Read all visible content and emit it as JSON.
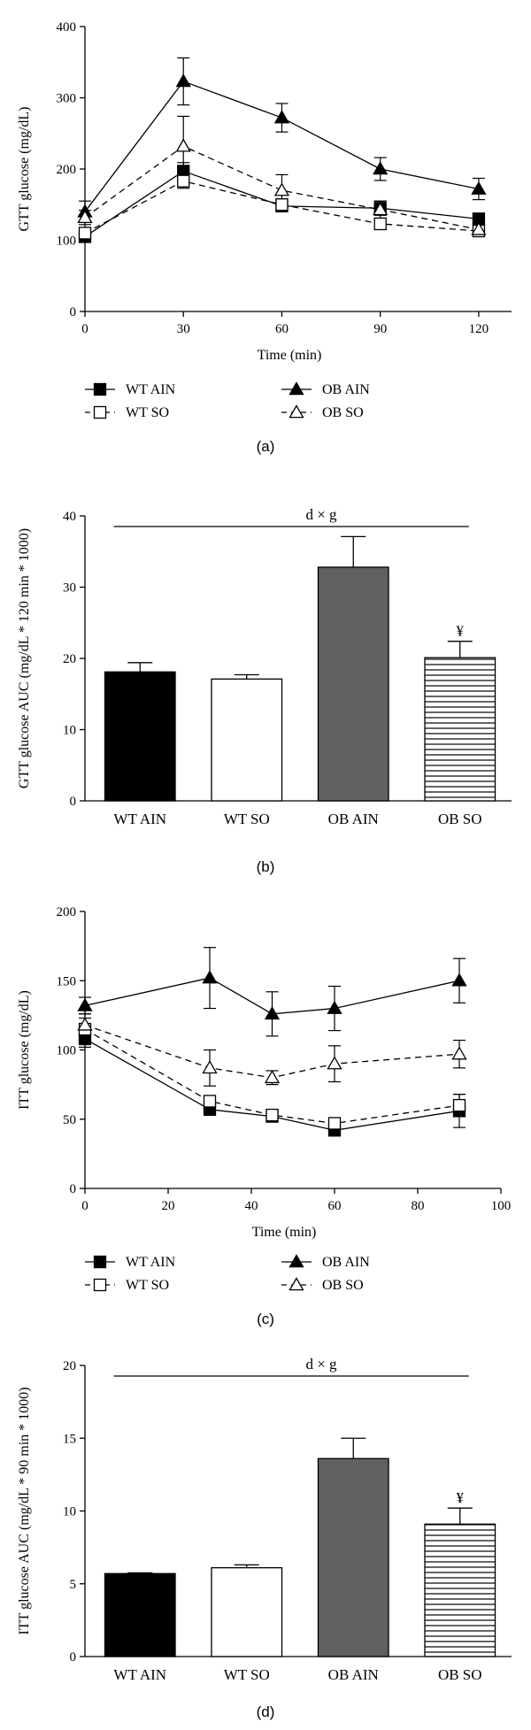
{
  "colors": {
    "axis": "#000000",
    "ob_ain_bar": "#606060",
    "wt_ain_bar": "#000000",
    "wt_so_bar": "#ffffff"
  },
  "chart_data": [
    {
      "type": "line",
      "panel": "(a)",
      "xlabel": "Time (min)",
      "ylabel": "GTT glucose (mg/dL)",
      "x": [
        0,
        30,
        60,
        90,
        120
      ],
      "xlim": [
        0,
        130
      ],
      "ylim": [
        0,
        400
      ],
      "xticks": [
        0,
        30,
        60,
        90,
        120
      ],
      "yticks": [
        0,
        100,
        200,
        300,
        400
      ],
      "series": [
        {
          "name": "WT AIN",
          "marker": "filled-square",
          "dashed": false,
          "values": [
            105,
            197,
            148,
            145,
            130
          ],
          "errors": [
            5,
            12,
            8,
            10,
            8
          ]
        },
        {
          "name": "OB AIN",
          "marker": "filled-triangle",
          "dashed": false,
          "values": [
            140,
            323,
            272,
            200,
            172
          ],
          "errors": [
            15,
            33,
            20,
            16,
            15
          ]
        },
        {
          "name": "WT SO",
          "marker": "open-square",
          "dashed": true,
          "values": [
            110,
            183,
            150,
            123,
            113
          ],
          "errors": [
            6,
            10,
            8,
            8,
            6
          ]
        },
        {
          "name": "OB SO",
          "marker": "open-triangle",
          "dashed": true,
          "values": [
            132,
            232,
            170,
            143,
            115
          ],
          "errors": [
            10,
            42,
            22,
            12,
            8
          ]
        }
      ],
      "legend": [
        "WT AIN",
        "OB AIN",
        "WT SO",
        "OB SO"
      ]
    },
    {
      "type": "bar",
      "panel": "(b)",
      "ylabel": "GTT glucose AUC (mg/dL * 120 min * 1000)",
      "categories": [
        "WT AIN",
        "WT SO",
        "OB AIN",
        "OB SO"
      ],
      "values": [
        18.1,
        17.1,
        32.8,
        20.1
      ],
      "errors": [
        1.3,
        0.6,
        4.3,
        2.3
      ],
      "fills": [
        "solid-black",
        "white",
        "dark-gray",
        "horizontal-stripes"
      ],
      "ylim": [
        0,
        40
      ],
      "yticks": [
        0,
        10,
        20,
        30,
        40
      ],
      "annotation": "d × g",
      "marker_label": "¥",
      "marker_on": "OB SO"
    },
    {
      "type": "line",
      "panel": "(c)",
      "xlabel": "Time (min)",
      "ylabel": "ITT glucose (mg/dL)",
      "x": [
        0,
        30,
        45,
        60,
        90
      ],
      "xlim": [
        0,
        100
      ],
      "ylim": [
        0,
        200
      ],
      "xticks": [
        0,
        20,
        40,
        60,
        80,
        100
      ],
      "yticks": [
        0,
        50,
        100,
        150,
        200
      ],
      "series": [
        {
          "name": "WT AIN",
          "marker": "filled-square",
          "dashed": false,
          "values": [
            108,
            57,
            52,
            42,
            56
          ],
          "errors": [
            6,
            3,
            4,
            4,
            12
          ]
        },
        {
          "name": "OB AIN",
          "marker": "filled-triangle",
          "dashed": false,
          "values": [
            132,
            152,
            126,
            130,
            150
          ],
          "errors": [
            6,
            22,
            16,
            16,
            16
          ]
        },
        {
          "name": "WT SO",
          "marker": "open-square",
          "dashed": true,
          "values": [
            115,
            63,
            53,
            47,
            60
          ],
          "errors": [
            8,
            3,
            3,
            3,
            8
          ]
        },
        {
          "name": "OB SO",
          "marker": "open-triangle",
          "dashed": true,
          "values": [
            118,
            87,
            80,
            90,
            97
          ],
          "errors": [
            8,
            13,
            5,
            13,
            10
          ]
        }
      ],
      "legend": [
        "WT AIN",
        "OB AIN",
        "WT SO",
        "OB SO"
      ]
    },
    {
      "type": "bar",
      "panel": "(d)",
      "ylabel": "ITT glucose AUC (mg/dL * 90 min * 1000)",
      "categories": [
        "WT AIN",
        "WT SO",
        "OB AIN",
        "OB SO"
      ],
      "values": [
        5.7,
        6.1,
        13.6,
        9.1
      ],
      "errors": [
        0.05,
        0.2,
        1.4,
        1.1
      ],
      "fills": [
        "solid-black",
        "white",
        "dark-gray",
        "horizontal-stripes"
      ],
      "ylim": [
        0,
        20
      ],
      "yticks": [
        0,
        5,
        10,
        15,
        20
      ],
      "annotation": "d × g",
      "marker_label": "¥",
      "marker_on": "OB SO"
    }
  ]
}
